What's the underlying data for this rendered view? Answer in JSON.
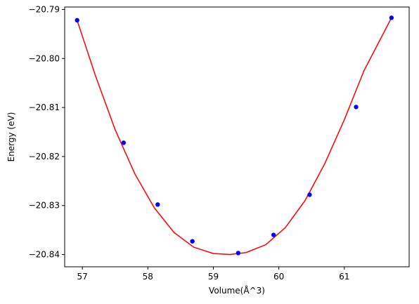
{
  "chart_data": {
    "type": "scatter",
    "xlabel": "Volume(Å^3)",
    "ylabel": "Energy (eV)",
    "xlim": [
      56.73,
      61.99
    ],
    "ylim": [
      -20.8425,
      -20.7895
    ],
    "xticks": [
      57,
      58,
      59,
      60,
      61
    ],
    "xtick_labels": [
      "57",
      "58",
      "59",
      "60",
      "61"
    ],
    "yticks": [
      -20.84,
      -20.83,
      -20.82,
      -20.81,
      -20.8,
      -20.79
    ],
    "ytick_labels": [
      "−20.84",
      "−20.83",
      "−20.82",
      "−20.81",
      "−20.80",
      "−20.79"
    ],
    "grid": false,
    "series": [
      {
        "kind": "scatter",
        "color": "#0000ff",
        "x": [
          56.92,
          57.63,
          58.15,
          58.68,
          59.38,
          59.92,
          60.47,
          61.18,
          61.72
        ],
        "y": [
          -20.7922,
          -20.8172,
          -20.8298,
          -20.8373,
          -20.8397,
          -20.836,
          -20.8278,
          -20.8099,
          -20.7917
        ]
      },
      {
        "kind": "line",
        "color": "#ff0000",
        "x": [
          56.92,
          57.2,
          57.5,
          57.8,
          58.1,
          58.4,
          58.7,
          59.0,
          59.25,
          59.5,
          59.8,
          60.1,
          60.4,
          60.7,
          61.0,
          61.3,
          61.72
        ],
        "y": [
          -20.7922,
          -20.8035,
          -20.8145,
          -20.8235,
          -20.8305,
          -20.8355,
          -20.8385,
          -20.8398,
          -20.84,
          -20.8396,
          -20.838,
          -20.8345,
          -20.829,
          -20.8215,
          -20.8125,
          -20.8025,
          -20.7917
        ]
      }
    ]
  }
}
